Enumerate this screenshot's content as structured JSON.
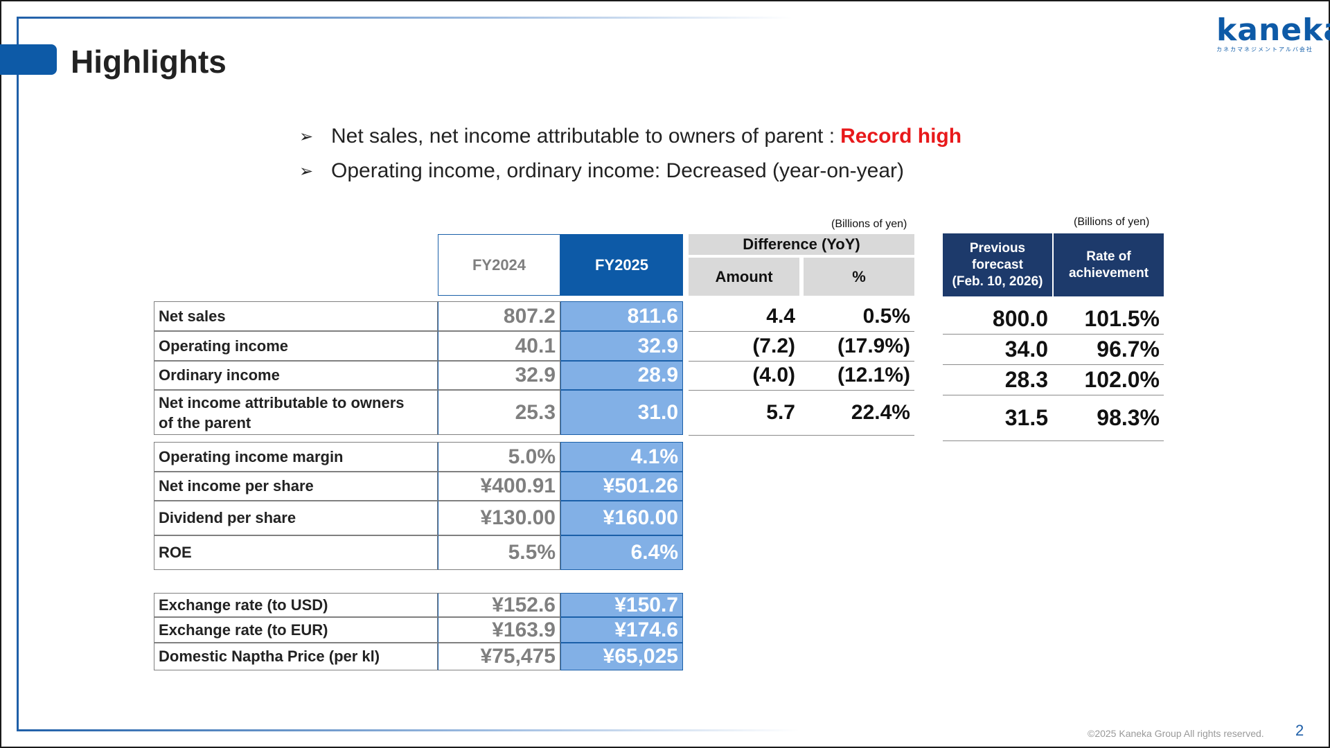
{
  "page": {
    "title": "Highlights",
    "page_number": "2",
    "copyright": "©2025 Kaneka Group All rights reserved.",
    "colors": {
      "brand_blue": "#0d5aa7",
      "fy2025_fill": "#82b0e6",
      "forecast_header": "#1d3a6b",
      "highlight_red": "#e8191b"
    }
  },
  "logo": {
    "name": "Kaneka",
    "main": "kaneka",
    "sub": "カネカマネジメントアルバ会社"
  },
  "bullets": [
    {
      "text": "Net sales, net income attributable to owners of parent :",
      "highlight": "Record high"
    },
    {
      "text": "Operating income, ordinary income: Decreased (year-on-year)"
    }
  ],
  "units": {
    "left": "(Billions of yen)",
    "right": "(Billions of yen)"
  },
  "table": {
    "headers": {
      "fy2024": "FY2024",
      "fy2025": "FY2025",
      "difference": "Difference (YoY)",
      "amount": "Amount",
      "percent": "%"
    },
    "rows": [
      {
        "label": "Net sales",
        "fy2024": "807.2",
        "fy2025": "811.6",
        "amount": "4.4",
        "percent": "0.5%"
      },
      {
        "label": "Operating income",
        "fy2024": "40.1",
        "fy2025": "32.9",
        "amount": "(7.2)",
        "percent": "(17.9%)"
      },
      {
        "label": "Ordinary income",
        "fy2024": "32.9",
        "fy2025": "28.9",
        "amount": "(4.0)",
        "percent": "(12.1%)"
      },
      {
        "label_line1": "Net income attributable to owners",
        "label_line2": "of the parent",
        "fy2024": "25.3",
        "fy2025": "31.0",
        "amount": "5.7",
        "percent": "22.4%"
      }
    ],
    "ratios": [
      {
        "label": "Operating income margin",
        "fy2024": "5.0%",
        "fy2025": "4.1%"
      },
      {
        "label": "Net income per share",
        "fy2024": "¥400.91",
        "fy2025": "¥501.26"
      },
      {
        "label": "Dividend per share",
        "fy2024": "¥130.00",
        "fy2025": "¥160.00"
      },
      {
        "label": "ROE",
        "fy2024": "5.5%",
        "fy2025": "6.4%"
      }
    ],
    "market": [
      {
        "label": "Exchange rate (to USD)",
        "fy2024": "¥152.6",
        "fy2025": "¥150.7"
      },
      {
        "label": "Exchange rate (to EUR)",
        "fy2024": "¥163.9",
        "fy2025": "¥174.6"
      },
      {
        "label": "Domestic Naptha Price (per kl)",
        "fy2024": "¥75,475",
        "fy2025": "¥65,025"
      }
    ]
  },
  "forecast": {
    "header_forecast_1": "Previous",
    "header_forecast_2": "forecast",
    "header_forecast_3": "(Feb. 10, 2026)",
    "header_rate_1": "Rate of",
    "header_rate_2": "achievement",
    "rows": [
      {
        "forecast": "800.0",
        "rate": "101.5%"
      },
      {
        "forecast": "34.0",
        "rate": "96.7%"
      },
      {
        "forecast": "28.3",
        "rate": "102.0%"
      },
      {
        "forecast": "31.5",
        "rate": "98.3%"
      }
    ]
  }
}
